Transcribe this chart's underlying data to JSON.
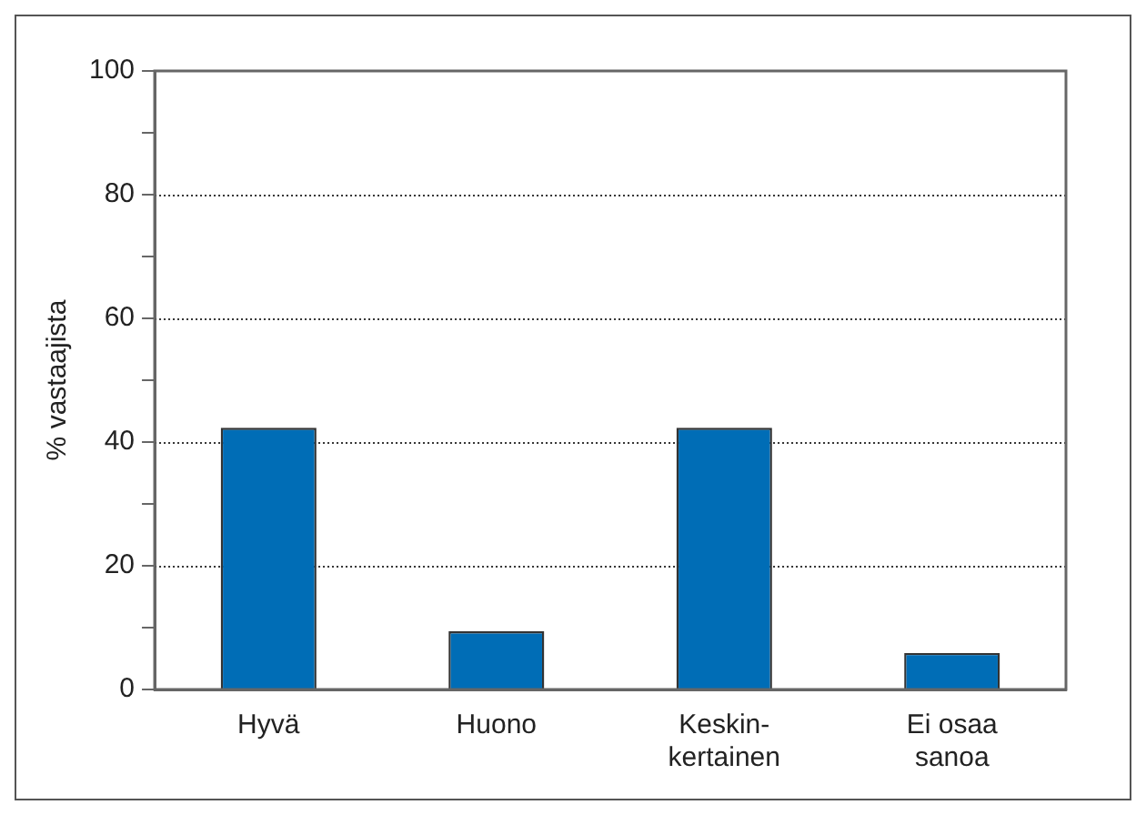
{
  "chart_data": {
    "type": "bar",
    "ylabel": "% vastaajista",
    "categories": [
      "Hyvä",
      "Huono",
      "Keskin-\nkertainen",
      "Ei osaa\nsanoa"
    ],
    "values": [
      42.3,
      9.4,
      42.3,
      5.9
    ],
    "color": "#006db6",
    "ylim": [
      0,
      100
    ],
    "yticks": [
      0,
      {
        "value": 10,
        "label": null
      },
      20,
      {
        "value": 30,
        "label": null
      },
      40,
      {
        "value": 50,
        "label": null
      },
      60,
      {
        "value": 70,
        "label": null
      },
      80,
      {
        "value": 90,
        "label": null
      },
      100
    ],
    "grid": "y",
    "legend": false
  }
}
